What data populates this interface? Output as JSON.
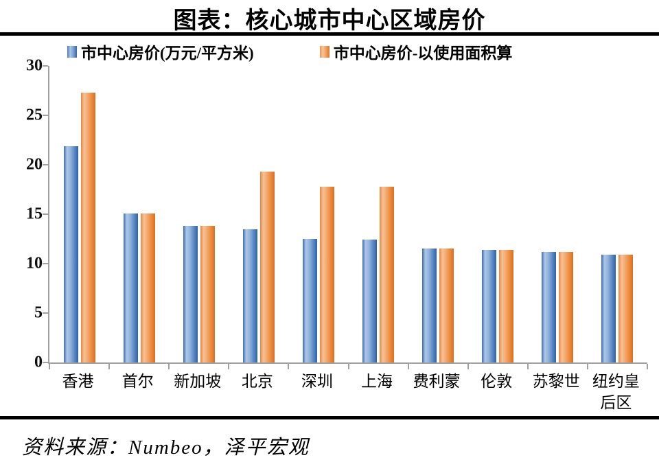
{
  "title": "图表：核心城市中心区域房价",
  "source": "资料来源：Numbeo，泽平宏观",
  "legend": {
    "series1_label": "市中心房价(万元/平方米)",
    "series2_label": "市中心房价-以使用面积算"
  },
  "colors": {
    "series1": "#4f81bd",
    "series2": "#ed7d31",
    "axis": "#a0a0a0",
    "rule": "#000000"
  },
  "chart_data": {
    "type": "bar",
    "title": "图表：核心城市中心区域房价",
    "categories": [
      "香港",
      "首尔",
      "新加坡",
      "北京",
      "深圳",
      "上海",
      "费利蒙",
      "伦敦",
      "苏黎世",
      "纽约皇后区"
    ],
    "series": [
      {
        "name": "市中心房价(万元/平方米)",
        "color": "#4f81bd",
        "values": [
          21.9,
          15.1,
          13.8,
          13.5,
          12.5,
          12.4,
          11.5,
          11.4,
          11.2,
          10.9
        ]
      },
      {
        "name": "市中心房价-以使用面积算",
        "color": "#ed7d31",
        "values": [
          27.3,
          15.1,
          13.8,
          19.3,
          17.8,
          17.8,
          11.5,
          11.4,
          11.2,
          10.9
        ]
      }
    ],
    "xlabel": "",
    "ylabel": "",
    "ylim": [
      0,
      30
    ],
    "yticks": [
      0,
      5,
      10,
      15,
      20,
      25,
      30
    ],
    "grid": false,
    "legend_position": "top"
  }
}
